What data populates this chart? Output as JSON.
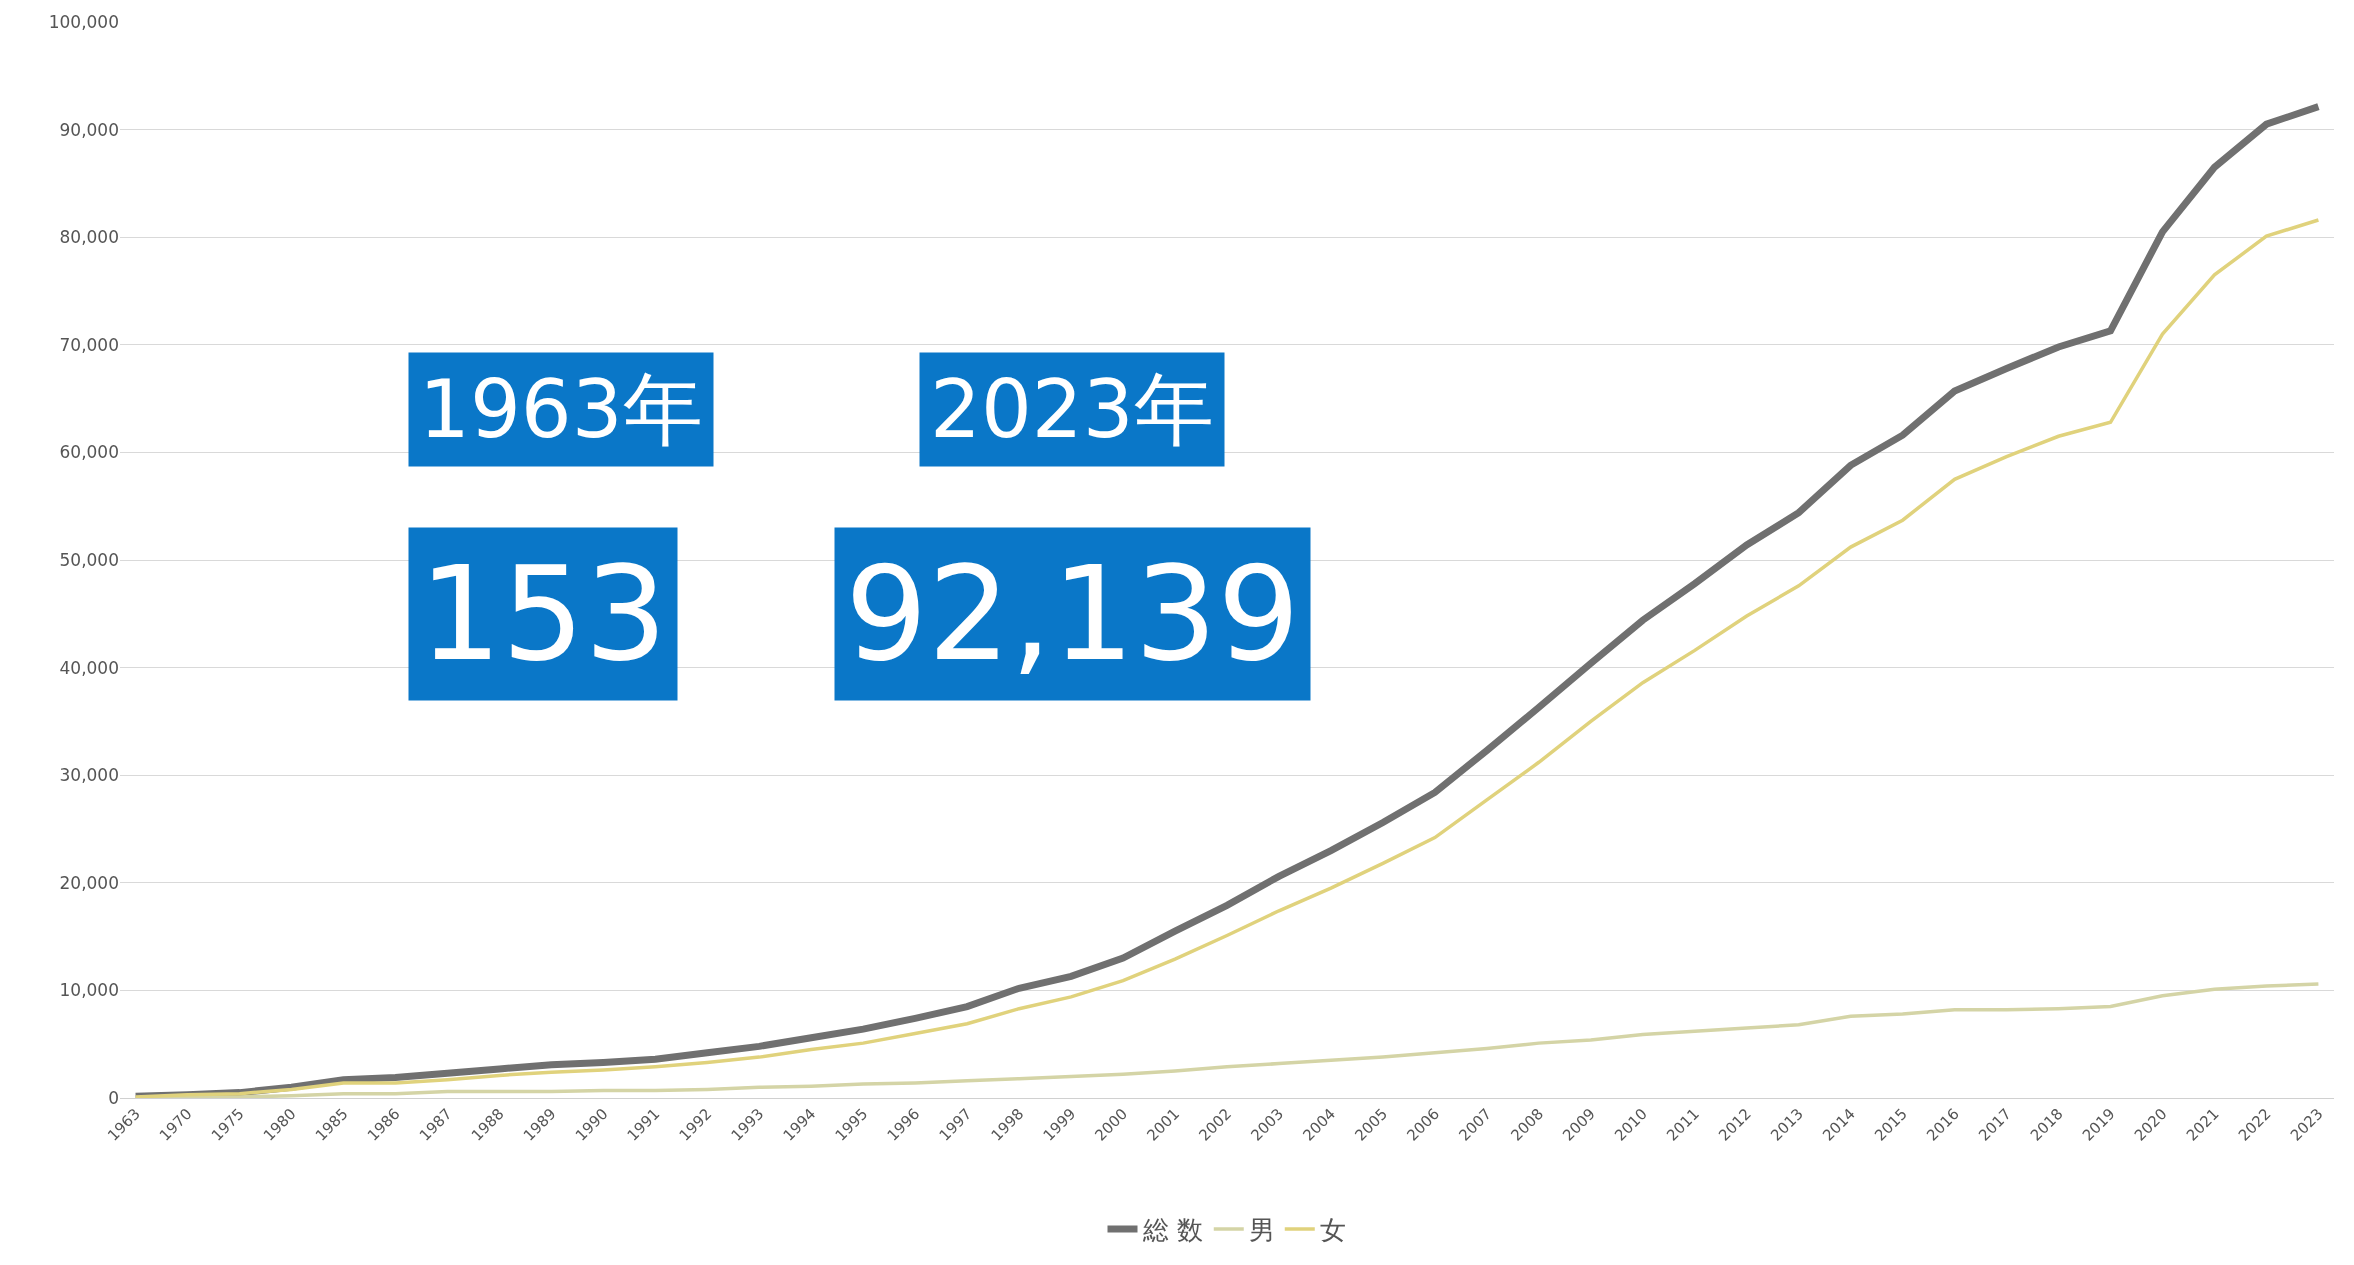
{
  "chart_data": {
    "type": "line",
    "categories": [
      "1963",
      "1970",
      "1975",
      "1980",
      "1985",
      "1986",
      "1987",
      "1988",
      "1989",
      "1990",
      "1991",
      "1992",
      "1993",
      "1994",
      "1995",
      "1996",
      "1997",
      "1998",
      "1999",
      "2000",
      "2001",
      "2002",
      "2003",
      "2004",
      "2005",
      "2006",
      "2007",
      "2008",
      "2009",
      "2010",
      "2011",
      "2012",
      "2013",
      "2014",
      "2015",
      "2016",
      "2017",
      "2018",
      "2019",
      "2020",
      "2021",
      "2022",
      "2023"
    ],
    "series": [
      {
        "name": "総 数",
        "color": "#707070",
        "values": [
          153,
          300,
          500,
          1000,
          1700,
          1900,
          2300,
          2700,
          3100,
          3300,
          3600,
          4200,
          4800,
          5600,
          6400,
          7400,
          8500,
          10200,
          11300,
          13000,
          15500,
          17900,
          20600,
          23000,
          25600,
          28400,
          32300,
          36300,
          40400,
          44400,
          47800,
          51400,
          54400,
          58800,
          61600,
          65700,
          67800,
          69800,
          71300,
          80500,
          86500,
          90500,
          92139
        ]
      },
      {
        "name": "男",
        "color": "#d4d4a6",
        "values": [
          0,
          100,
          100,
          200,
          400,
          400,
          600,
          600,
          600,
          700,
          700,
          800,
          1000,
          1100,
          1300,
          1400,
          1600,
          1800,
          2000,
          2200,
          2500,
          2900,
          3200,
          3500,
          3800,
          4200,
          4600,
          5100,
          5400,
          5900,
          6200,
          6500,
          6800,
          7600,
          7800,
          8200,
          8200,
          8300,
          8500,
          9500,
          10100,
          10400,
          10600
        ]
      },
      {
        "name": "女",
        "color": "#e0d27c",
        "values": [
          100,
          300,
          400,
          800,
          1400,
          1400,
          1700,
          2100,
          2400,
          2600,
          2900,
          3300,
          3800,
          4500,
          5100,
          6000,
          6900,
          8300,
          9400,
          10900,
          12900,
          15100,
          17400,
          19500,
          21800,
          24200,
          27700,
          31200,
          35000,
          38600,
          41600,
          44800,
          47600,
          51200,
          53700,
          57500,
          59600,
          61500,
          62800,
          71000,
          76500,
          80100,
          81600
        ]
      }
    ],
    "ylim": [
      0,
      100000
    ],
    "yticks": [
      {
        "value": 0,
        "label": "0"
      },
      {
        "value": 10000,
        "label": "10,000"
      },
      {
        "value": 20000,
        "label": "20,000"
      },
      {
        "value": 30000,
        "label": "30,000"
      },
      {
        "value": 40000,
        "label": "40,000"
      },
      {
        "value": 50000,
        "label": "50,000"
      },
      {
        "value": 60000,
        "label": "60,000"
      },
      {
        "value": 70000,
        "label": "70,000"
      },
      {
        "value": 80000,
        "label": "80,000"
      },
      {
        "value": 90000,
        "label": "90,000"
      },
      {
        "value": 100000,
        "label": "100,000"
      }
    ],
    "grid": "y",
    "legend": "bottom",
    "marker": "none",
    "line_style": "solid",
    "annotations": [
      "1963年",
      "153",
      "2023年",
      "92,139"
    ]
  }
}
